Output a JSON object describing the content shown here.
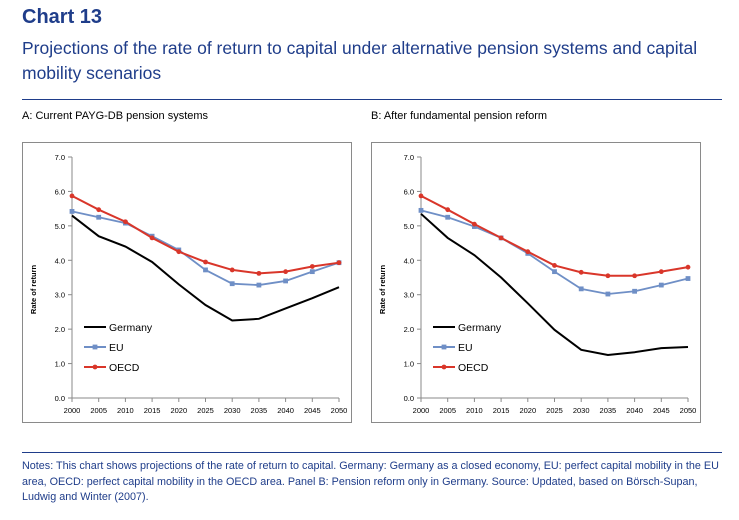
{
  "header": {
    "number": "Chart 13",
    "title": "Projections of the rate of return to capital under alternative pension systems and capital mobility scenarios"
  },
  "notes": "Notes: This chart shows projections of the rate of return to capital. Germany: Germany as a closed economy, EU: perfect capital mobility in the EU area, OECD: perfect capital mobility in the OECD area. Panel B: Pension reform only in Germany. Source: Updated, based on Börsch-Supan, Ludwig and Winter (2007).",
  "colors": {
    "Germany": "#000000",
    "EU": "#6f8fc6",
    "OECD": "#d9362a",
    "accent": "#1f3d8a"
  },
  "chart_data": [
    {
      "type": "line",
      "panel": "A",
      "title": "A: Current PAYG-DB pension systems",
      "xlabel": "",
      "ylabel": "Rate of return",
      "x": [
        2000,
        2005,
        2010,
        2015,
        2020,
        2025,
        2030,
        2035,
        2040,
        2045,
        2050
      ],
      "ylim": [
        0,
        7
      ],
      "yticks": [
        "0.0",
        "1.0",
        "2.0",
        "3.0",
        "4.0",
        "5.0",
        "6.0",
        "7.0"
      ],
      "grid": false,
      "legend_position": "bottom-left",
      "series": [
        {
          "name": "Germany",
          "values": [
            5.3,
            4.7,
            4.4,
            3.95,
            3.3,
            2.7,
            2.25,
            2.3,
            2.6,
            2.9,
            3.22
          ]
        },
        {
          "name": "EU",
          "values": [
            5.42,
            5.25,
            5.08,
            4.7,
            4.3,
            3.72,
            3.32,
            3.28,
            3.4,
            3.67,
            3.93
          ]
        },
        {
          "name": "OECD",
          "values": [
            5.87,
            5.47,
            5.12,
            4.65,
            4.25,
            3.95,
            3.72,
            3.62,
            3.67,
            3.82,
            3.93
          ]
        }
      ]
    },
    {
      "type": "line",
      "panel": "B",
      "title": "B: After fundamental pension reform",
      "xlabel": "",
      "ylabel": "Rate of return",
      "x": [
        2000,
        2005,
        2010,
        2015,
        2020,
        2025,
        2030,
        2035,
        2040,
        2045,
        2050
      ],
      "ylim": [
        0,
        7
      ],
      "yticks": [
        "0.0",
        "1.0",
        "2.0",
        "3.0",
        "4.0",
        "5.0",
        "6.0",
        "7.0"
      ],
      "grid": false,
      "legend_position": "bottom-left",
      "series": [
        {
          "name": "Germany",
          "values": [
            5.35,
            4.65,
            4.15,
            3.5,
            2.75,
            1.98,
            1.4,
            1.25,
            1.33,
            1.45,
            1.48
          ]
        },
        {
          "name": "EU",
          "values": [
            5.45,
            5.25,
            4.98,
            4.65,
            4.2,
            3.67,
            3.17,
            3.02,
            3.1,
            3.28,
            3.47
          ]
        },
        {
          "name": "OECD",
          "values": [
            5.87,
            5.47,
            5.05,
            4.65,
            4.25,
            3.85,
            3.65,
            3.55,
            3.55,
            3.67,
            3.8
          ]
        }
      ]
    }
  ]
}
